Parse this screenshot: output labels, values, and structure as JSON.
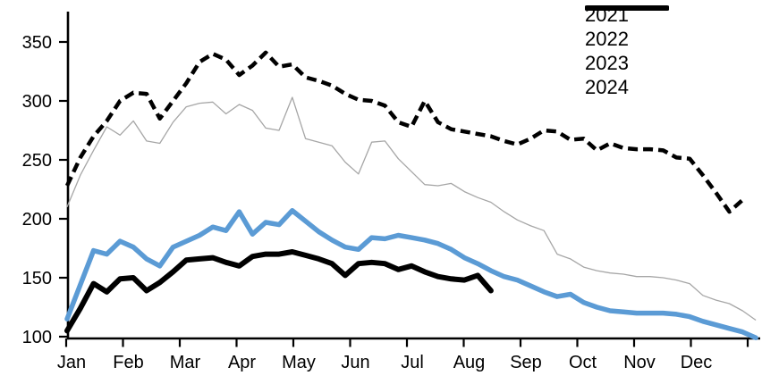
{
  "chart_data": {
    "type": "line",
    "title": "",
    "x_unit": "week",
    "x_tick_labels": [
      "Jan",
      "Feb",
      "Mar",
      "Apr",
      "May",
      "Jun",
      "Jul",
      "Aug",
      "Sep",
      "Oct",
      "Nov",
      "Dec"
    ],
    "y_tick_labels": [
      100,
      150,
      200,
      250,
      300,
      350
    ],
    "ylim": [
      100,
      350
    ],
    "grid": "off",
    "legend_position": "top-right",
    "series": [
      {
        "name": "2021",
        "color": "#000000",
        "line_style": "dashed",
        "thickness": 4.5,
        "values": [
          228,
          252,
          270,
          283,
          300,
          307,
          306,
          285,
          300,
          315,
          333,
          340,
          335,
          322,
          330,
          341,
          329,
          331,
          320,
          317,
          313,
          306,
          301,
          300,
          296,
          282,
          278,
          300,
          282,
          276,
          274,
          272,
          270,
          266,
          263,
          268,
          275,
          274,
          267,
          268,
          258,
          264,
          260,
          259,
          259,
          258,
          252,
          251,
          237,
          222,
          206,
          216
        ]
      },
      {
        "name": "2022",
        "color": "#A6A6A6",
        "line_style": "solid",
        "thickness": 1.3,
        "values": [
          210,
          237,
          258,
          278,
          271,
          283,
          266,
          264,
          282,
          295,
          298,
          299,
          289,
          297,
          292,
          277,
          275,
          303,
          268,
          265,
          262,
          248,
          238,
          265,
          266,
          251,
          240,
          229,
          228,
          230,
          223,
          218,
          214,
          206,
          199,
          194,
          190,
          170,
          166,
          159,
          156,
          154,
          153,
          151,
          151,
          150,
          148,
          145,
          135,
          131,
          128,
          122,
          114
        ]
      },
      {
        "name": "2023",
        "color": "#5B9BD5",
        "line_style": "solid",
        "thickness": 5.5,
        "values": [
          115,
          144,
          173,
          170,
          181,
          176,
          166,
          160,
          176,
          181,
          186,
          193,
          190,
          206,
          187,
          197,
          195,
          207,
          198,
          189,
          182,
          176,
          174,
          184,
          183,
          186,
          184,
          182,
          179,
          174,
          167,
          162,
          156,
          151,
          148,
          143,
          138,
          134,
          136,
          129,
          125,
          122,
          121,
          120,
          120,
          120,
          119,
          117,
          113,
          110,
          107,
          104,
          99
        ]
      },
      {
        "name": "2024",
        "color": "#000000",
        "line_style": "solid",
        "thickness": 6,
        "values": [
          105,
          124,
          145,
          138,
          149,
          150,
          139,
          146,
          155,
          165,
          166,
          167,
          163,
          160,
          168,
          170,
          170,
          172,
          169,
          166,
          162,
          152,
          162,
          163,
          162,
          157,
          160,
          155,
          151,
          149,
          148,
          152,
          139
        ]
      }
    ]
  }
}
